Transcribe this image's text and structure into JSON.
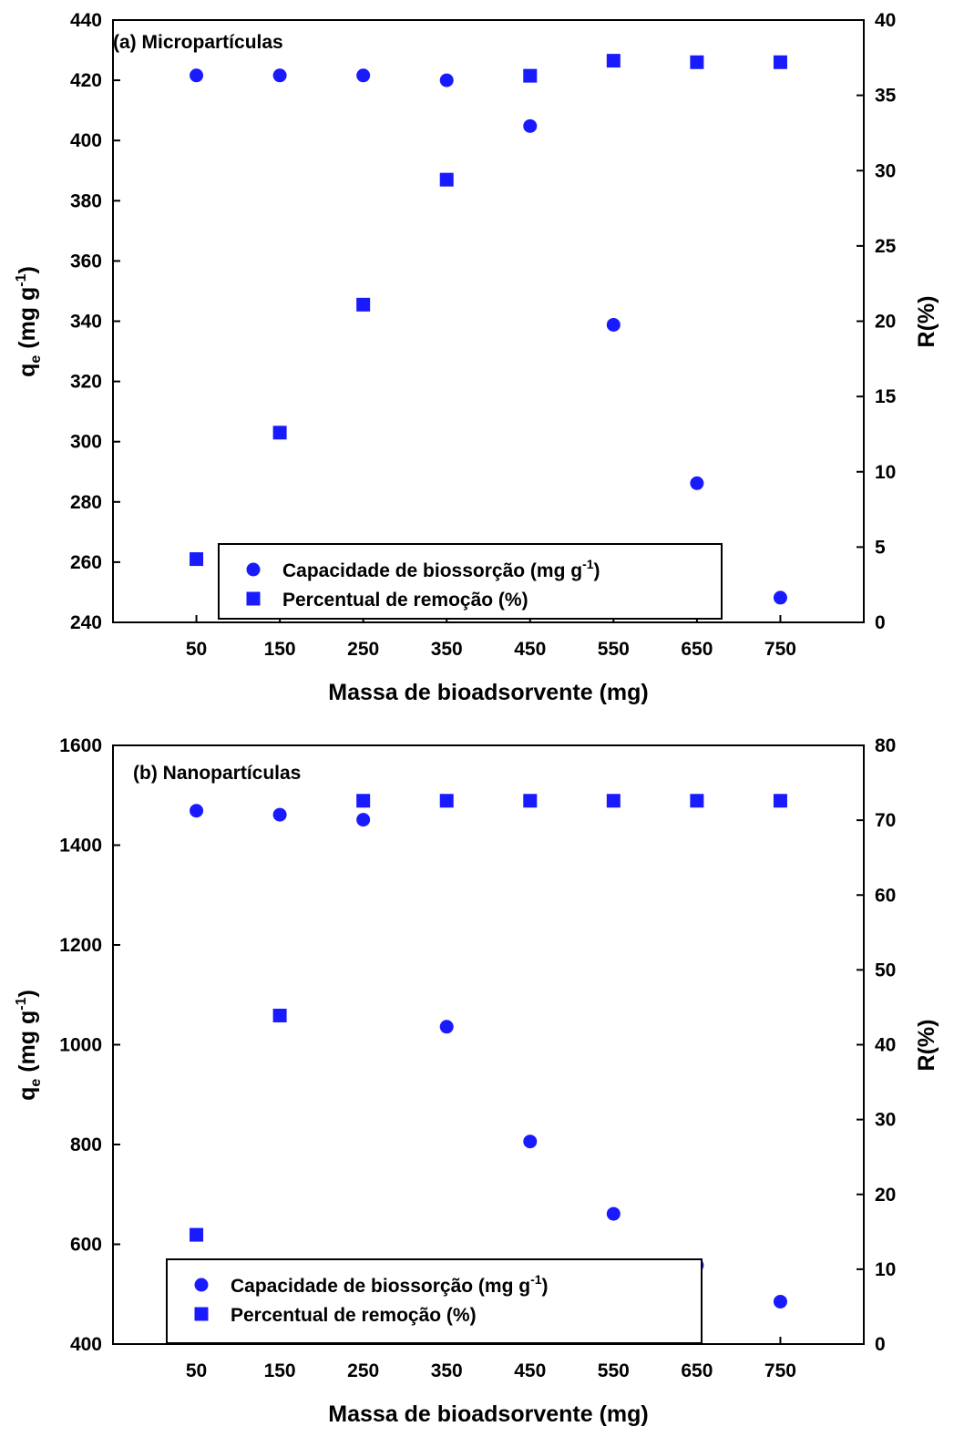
{
  "chart_data": [
    {
      "type": "scatter",
      "title": "(a) Micropartículas",
      "xlabel": "Massa de bioadsorvente (mg)",
      "ylabel_left": "q_e (mg g^-1)",
      "ylabel_right": "R(%)",
      "xlim": [
        -50,
        850
      ],
      "ylim_left": [
        240,
        440
      ],
      "ylim_right": [
        0,
        40
      ],
      "xticks": [
        "50",
        "150",
        "250",
        "350",
        "450",
        "550",
        "650",
        "750"
      ],
      "yticks_left": [
        "240",
        "260",
        "280",
        "300",
        "320",
        "340",
        "360",
        "380",
        "400",
        "420",
        "440"
      ],
      "yticks_right": [
        "0",
        "5",
        "10",
        "15",
        "20",
        "25",
        "30",
        "35",
        "40"
      ],
      "legend_position": "bottom-center",
      "grid": false,
      "series": [
        {
          "name": "Capacidade de biossorção (mg g-1)",
          "marker": "circle",
          "axis": "left",
          "x": [
            50,
            150,
            250,
            350,
            450,
            550,
            650,
            750
          ],
          "y": [
            421.6,
            421.6,
            421.6,
            420.0,
            404.8,
            338.8,
            286.2,
            248.2
          ]
        },
        {
          "name": "Percentual de remoção (%)",
          "marker": "square",
          "axis": "right",
          "x": [
            50,
            150,
            250,
            350,
            450,
            550,
            650,
            750
          ],
          "y": [
            4.2,
            12.6,
            21.1,
            29.4,
            36.3,
            37.3,
            37.2,
            37.2
          ]
        }
      ]
    },
    {
      "type": "scatter",
      "title": "(b) Nanopartículas",
      "xlabel": "Massa de bioadsorvente (mg)",
      "ylabel_left": "q_e (mg g^-1)",
      "ylabel_right": "R(%)",
      "xlim": [
        -50,
        850
      ],
      "ylim_left": [
        400,
        1600
      ],
      "ylim_right": [
        0,
        80
      ],
      "xticks": [
        "50",
        "150",
        "250",
        "350",
        "450",
        "550",
        "650",
        "750"
      ],
      "yticks_left": [
        "400",
        "600",
        "800",
        "1000",
        "1200",
        "1400",
        "1600"
      ],
      "yticks_right": [
        "0",
        "10",
        "20",
        "30",
        "40",
        "50",
        "60",
        "70",
        "80"
      ],
      "legend_position": "bottom-left",
      "grid": false,
      "series": [
        {
          "name": "Capacidade de biossorção (mg g-1)",
          "marker": "circle",
          "axis": "left",
          "x": [
            50,
            150,
            250,
            350,
            450,
            550,
            650,
            750
          ],
          "y": [
            1469,
            1461,
            1451,
            1036,
            806,
            661,
            558,
            485
          ]
        },
        {
          "name": "Percentual de remoção (%)",
          "marker": "square",
          "axis": "right",
          "x": [
            50,
            150,
            250,
            350,
            450,
            550,
            650,
            750
          ],
          "y": [
            14.6,
            43.9,
            72.6,
            72.6,
            72.6,
            72.6,
            72.6,
            72.6
          ]
        }
      ]
    }
  ],
  "colors": {
    "marker": "#1a1aff",
    "axis": "#000000"
  }
}
